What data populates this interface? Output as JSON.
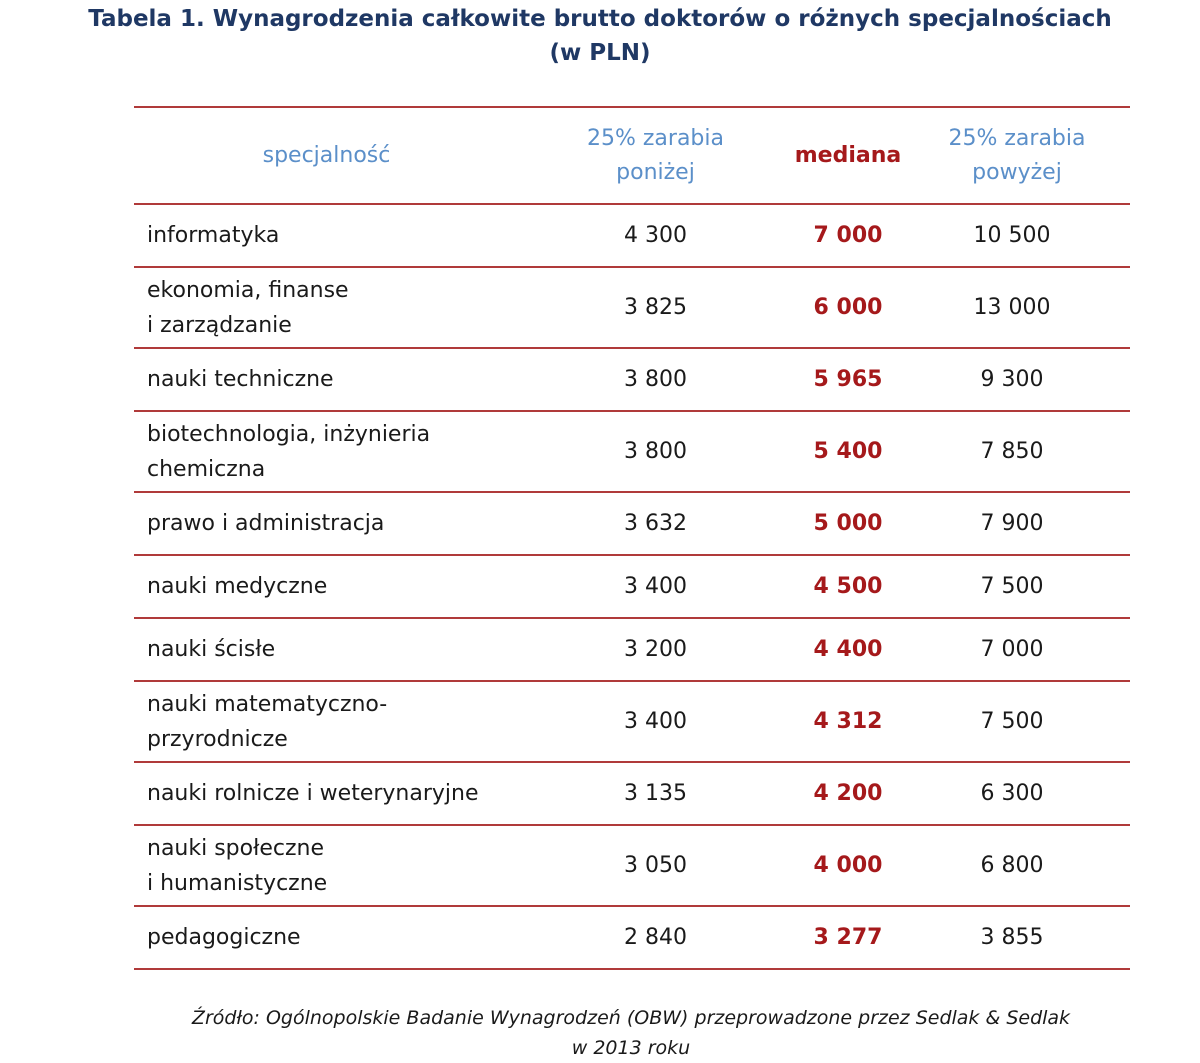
{
  "title": {
    "line1": "Tabela 1. Wynagrodzenia całkowite brutto doktorów o różnych specjalnościach",
    "line2": "(w PLN)"
  },
  "headers": {
    "specialty": "specjalność",
    "low_line1": "25% zarabia",
    "low_line2": "poniżej",
    "median": "mediana",
    "high_line1": "25% zarabia",
    "high_line2": "powyżej"
  },
  "chart_data": {
    "type": "table",
    "title": "Tabela 1. Wynagrodzenia całkowite brutto doktorów o różnych specjalnościach (w PLN)",
    "columns": [
      "specjalność",
      "25% zarabia poniżej",
      "mediana",
      "25% zarabia powyżej"
    ],
    "rows": [
      {
        "name_lines": [
          "informatyka"
        ],
        "low": "4 300",
        "median": "7 000",
        "high": "10 500"
      },
      {
        "name_lines": [
          "ekonomia,  finanse",
          "i zarządzanie"
        ],
        "low": "3 825",
        "median": "6 000",
        "high": "13 000"
      },
      {
        "name_lines": [
          "nauki  techniczne"
        ],
        "low": "3 800",
        "median": "5 965",
        "high": "9 300"
      },
      {
        "name_lines": [
          "biotechnologia,  inżynieria",
          "chemiczna"
        ],
        "low": "3 800",
        "median": "5 400",
        "high": "7 850"
      },
      {
        "name_lines": [
          "prawo   i administracja"
        ],
        "low": "3 632",
        "median": "5 000",
        "high": "7 900"
      },
      {
        "name_lines": [
          "nauki  medyczne"
        ],
        "low": "3 400",
        "median": "4 500",
        "high": "7 500"
      },
      {
        "name_lines": [
          "nauki  ścisłe"
        ],
        "low": "3 200",
        "median": "4 400",
        "high": "7 000"
      },
      {
        "name_lines": [
          "nauki  matematyczno-",
          "przyrodnicze"
        ],
        "low": "3 400",
        "median": "4 312",
        "high": "7 500"
      },
      {
        "name_lines": [
          "nauki  rolnicze  i weterynaryjne"
        ],
        "low": "3 135",
        "median": "4 200",
        "high": "6 300"
      },
      {
        "name_lines": [
          "nauki  społeczne",
          "i humanistyczne"
        ],
        "low": "3 050",
        "median": "4 000",
        "high": "6 800"
      },
      {
        "name_lines": [
          "pedagogiczne"
        ],
        "low": "2 840",
        "median": "3 277",
        "high": "3 855"
      }
    ]
  },
  "source": {
    "line1": "Źródło: Ogólnopolskie Badanie Wynagrodzeń (OBW) przeprowadzone przez Sedlak & Sedlak",
    "line2": "w 2013 roku"
  },
  "colors": {
    "title": "#1f3864",
    "header_blue": "#5b8fc9",
    "median_red": "#a5191b",
    "rule_red": "#b03a3a"
  }
}
